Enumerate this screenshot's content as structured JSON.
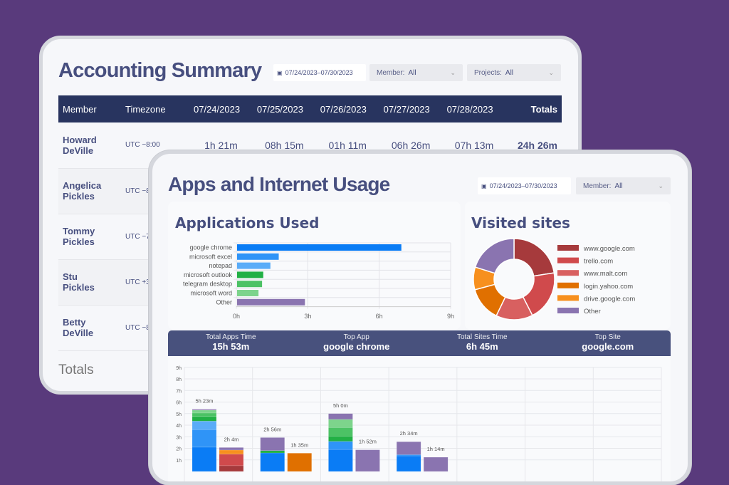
{
  "accounting": {
    "title": "Accounting Summary",
    "date_range": "07/24/2023–07/30/2023",
    "member_label": "Member:",
    "member_value": "All",
    "projects_label": "Projects:",
    "projects_value": "All",
    "columns": [
      "Member",
      "Timezone",
      "07/24/2023",
      "07/25/2023",
      "07/26/2023",
      "07/27/2023",
      "07/28/2023",
      "Totals"
    ],
    "rows": [
      {
        "first": "Howard",
        "last": "DeVille",
        "tz": "UTC −8:00",
        "d1": "1h 21m",
        "d2": "08h 15m",
        "d3": "01h 11m",
        "d4": "06h 26m",
        "d5": "07h 13m",
        "total": "24h 26m"
      },
      {
        "first": "Angelica",
        "last": "Pickles",
        "tz": "UTC −8"
      },
      {
        "first": "Tommy",
        "last": "Pickles",
        "tz": "UTC −7"
      },
      {
        "first": "Stu",
        "last": "Pickles",
        "tz": "UTC +3"
      },
      {
        "first": "Betty",
        "last": "DeVille",
        "tz": "UTC −8"
      }
    ],
    "totals_label": "Totals"
  },
  "usage": {
    "title": "Apps and Internet Usage",
    "date_range": "07/24/2023–07/30/2023",
    "member_label": "Member:",
    "member_value": "All",
    "apps_title": "Applications Used",
    "sites_title": "Visited sites",
    "summary": [
      {
        "label": "Total Apps Time",
        "value": "15h 53m"
      },
      {
        "label": "Top App",
        "value": "google chrome"
      },
      {
        "label": "Total Sites Time",
        "value": "6h 45m"
      },
      {
        "label": "Top Site",
        "value": "google.com"
      }
    ]
  },
  "chart_data": [
    {
      "type": "bar",
      "orientation": "horizontal",
      "categories": [
        "google chrome",
        "microsoft excel",
        "notepad",
        "microsoft outlook",
        "telegram desktop",
        "microsoft word",
        "Other"
      ],
      "values": [
        6.9,
        1.75,
        1.4,
        1.1,
        1.05,
        0.9,
        2.85
      ],
      "colors": [
        "#0a7cf5",
        "#2f94f7",
        "#5aacf8",
        "#22b045",
        "#4cc265",
        "#7dd48c",
        "#8a74b0"
      ],
      "xticks": [
        "0h",
        "3h",
        "6h",
        "9h"
      ],
      "xlim": [
        0,
        9
      ],
      "grid": true
    },
    {
      "type": "pie",
      "donut": true,
      "categories": [
        "www.google.com",
        "trello.com",
        "www.malt.com",
        "login.yahoo.com",
        "drive.google.com",
        "Other"
      ],
      "values": [
        22.5,
        20,
        14.7,
        13.6,
        9,
        20.2
      ],
      "colors": [
        "#a63a3c",
        "#d04a4c",
        "#d86060",
        "#e07000",
        "#f7901e",
        "#8a74b0"
      ],
      "legend": "right"
    },
    {
      "type": "bar",
      "stacked": true,
      "yticks": [
        "9h",
        "8h",
        "7h",
        "6h",
        "5h",
        "4h",
        "3h",
        "2h",
        "1h"
      ],
      "ylim": [
        0,
        9
      ],
      "grid": true,
      "days": [
        {
          "apps": {
            "label": "5h 23m",
            "segments": [
              2.1,
              1.5,
              0.75,
              0.4,
              0.3,
              0.25,
              0.08
            ]
          },
          "sites": {
            "label": "2h 4m",
            "segments": [
              0.5,
              1.0,
              0,
              0,
              0.35,
              0.22
            ]
          }
        },
        {
          "apps": {
            "label": "2h 56m",
            "segments": [
              1.6,
              0,
              0,
              0.2,
              0,
              0,
              1.13
            ]
          },
          "sites": {
            "label": "1h 35m",
            "segments": [
              0,
              0,
              0,
              1.58,
              0,
              0
            ]
          }
        },
        {
          "apps": {
            "label": "5h 0m",
            "segments": [
              1.9,
              0.7,
              0,
              0.45,
              0.75,
              0.7,
              0.5
            ]
          },
          "sites": {
            "label": "1h 52m",
            "segments": [
              0,
              0,
              0,
              0,
              0,
              1.87
            ]
          }
        },
        {
          "apps": {
            "label": "2h 34m",
            "segments": [
              1.35,
              0.1,
              0,
              0,
              0,
              0,
              1.12
            ]
          },
          "sites": {
            "label": "1h 14m",
            "segments": [
              0,
              0,
              0,
              0,
              0,
              1.23
            ]
          }
        },
        {},
        {},
        {}
      ]
    }
  ]
}
